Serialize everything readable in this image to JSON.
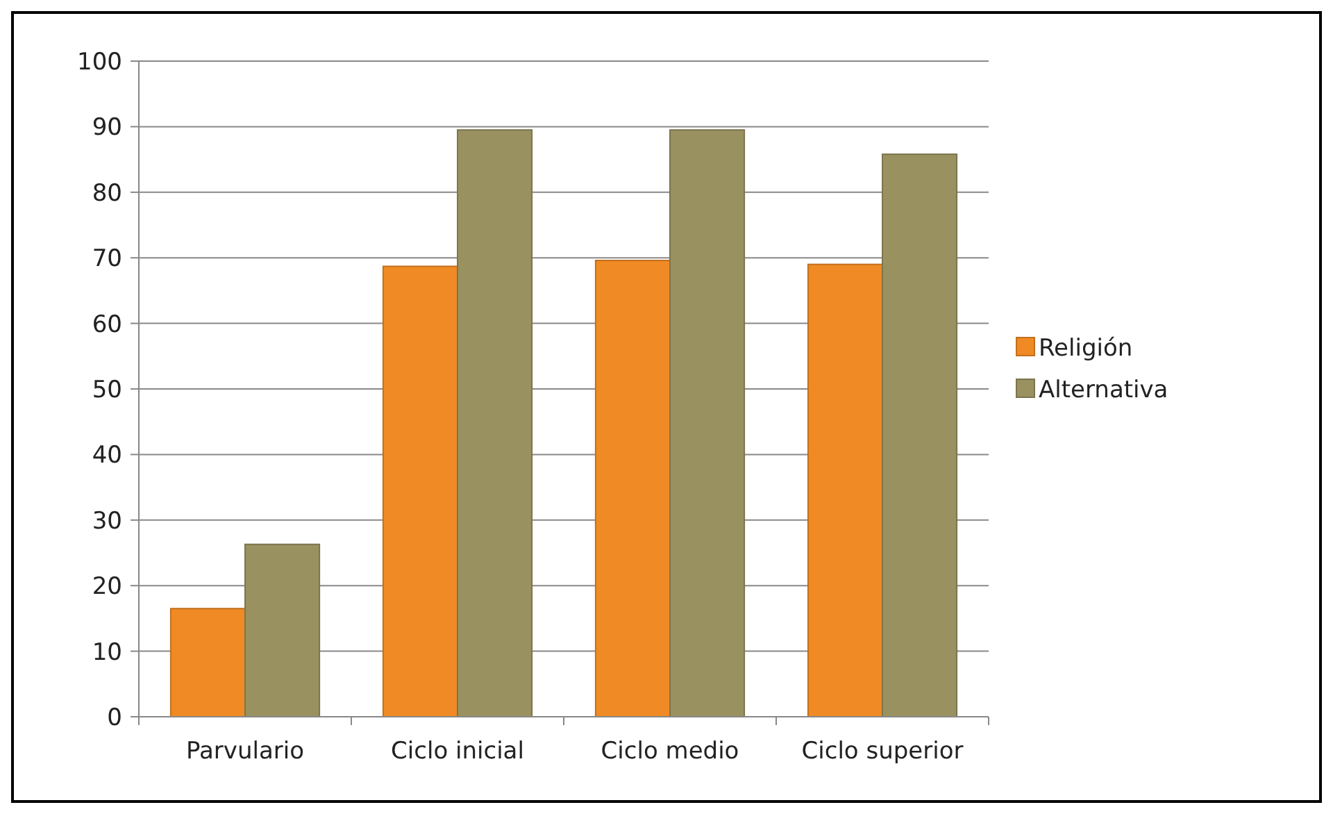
{
  "chart_data": {
    "type": "bar",
    "categories": [
      "Parvulario",
      "Ciclo inicial",
      "Ciclo medio",
      "Ciclo superior"
    ],
    "series": [
      {
        "name": "Religión",
        "color": "#f08a24",
        "values": [
          16.5,
          68.7,
          69.6,
          69
        ]
      },
      {
        "name": "Alternativa",
        "color": "#9a9160",
        "values": [
          26.3,
          89.5,
          89.5,
          85.8
        ]
      }
    ],
    "ylim": [
      0,
      100
    ],
    "yticks": [
      0,
      10,
      20,
      30,
      40,
      50,
      60,
      70,
      80,
      90,
      100
    ],
    "grid": "y",
    "legend": "right"
  }
}
